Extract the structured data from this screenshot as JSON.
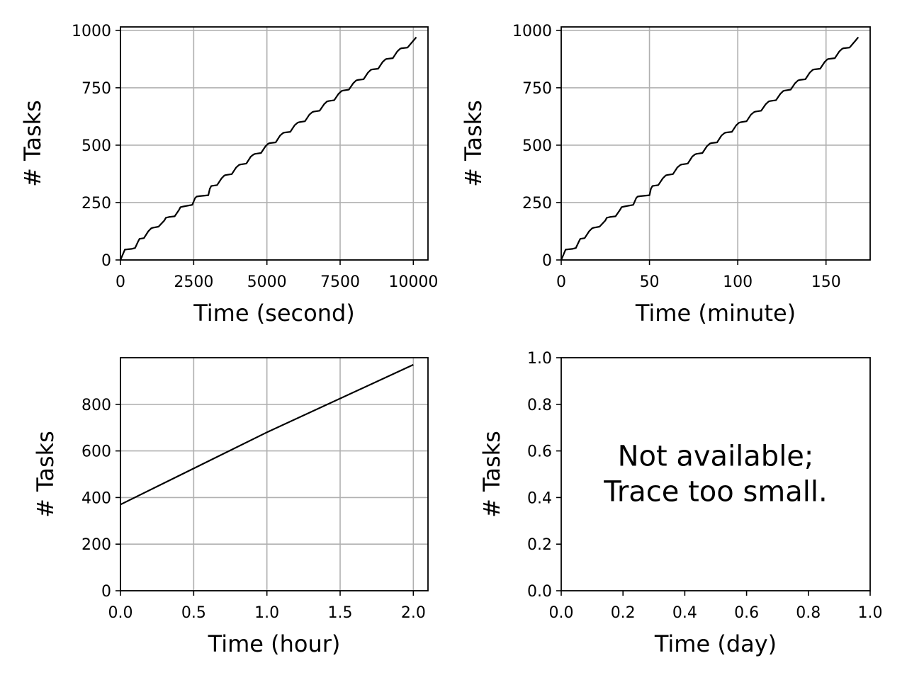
{
  "chart_data": [
    {
      "type": "line",
      "xlabel": "Time (second)",
      "ylabel": "# Tasks",
      "xlim": [
        0,
        10500
      ],
      "ylim": [
        0,
        1015
      ],
      "xticks": [
        0,
        2500,
        5000,
        7500,
        10000
      ],
      "xtick_labels": [
        "0",
        "2500",
        "5000",
        "7500",
        "10000"
      ],
      "yticks": [
        0,
        250,
        500,
        750,
        1000
      ],
      "ytick_labels": [
        "0",
        "250",
        "500",
        "750",
        "1000"
      ],
      "grid": true,
      "line_color": "#000000",
      "series": [
        {
          "x": [
            0,
            150,
            380,
            500,
            600,
            650,
            800,
            950,
            1050,
            1100,
            1300,
            1500,
            1550,
            1650,
            1850,
            2000,
            2050,
            2150,
            2450,
            2550,
            2600,
            2700,
            3000,
            3050,
            3100,
            3300,
            3450,
            3550,
            3600,
            3800,
            3950,
            4050,
            4100,
            4300,
            4450,
            4550,
            4600,
            4800,
            4950,
            5050,
            5100,
            5300,
            5450,
            5550,
            5600,
            5800,
            5950,
            6050,
            6100,
            6300,
            6450,
            6550,
            6600,
            6800,
            6950,
            7050,
            7100,
            7300,
            7450,
            7550,
            7600,
            7800,
            7950,
            8050,
            8100,
            8300,
            8450,
            8550,
            8600,
            8800,
            8950,
            9050,
            9100,
            9300,
            9450,
            9550,
            9600,
            9800,
            10000,
            10100
          ],
          "y": [
            0,
            45,
            48,
            52,
            80,
            92,
            95,
            125,
            138,
            140,
            145,
            172,
            184,
            187,
            190,
            218,
            230,
            233,
            240,
            270,
            276,
            278,
            282,
            310,
            322,
            326,
            355,
            368,
            370,
            374,
            403,
            414,
            416,
            420,
            450,
            460,
            462,
            466,
            495,
            507,
            509,
            512,
            542,
            553,
            555,
            558,
            587,
            598,
            600,
            604,
            633,
            644,
            646,
            650,
            678,
            690,
            692,
            696,
            724,
            736,
            738,
            742,
            770,
            782,
            784,
            787,
            816,
            828,
            830,
            833,
            862,
            874,
            876,
            879,
            908,
            920,
            922,
            925,
            955,
            970
          ]
        }
      ]
    },
    {
      "type": "line",
      "xlabel": "Time (minute)",
      "ylabel": "# Tasks",
      "xlim": [
        0,
        175
      ],
      "ylim": [
        0,
        1015
      ],
      "xticks": [
        0,
        50,
        100,
        150
      ],
      "xtick_labels": [
        "0",
        "50",
        "100",
        "150"
      ],
      "yticks": [
        0,
        250,
        500,
        750,
        1000
      ],
      "ytick_labels": [
        "0",
        "250",
        "500",
        "750",
        "1000"
      ],
      "grid": true,
      "line_color": "#000000",
      "series": [
        {
          "x": [
            0,
            2.5,
            6.3,
            8.3,
            10,
            10.8,
            13.3,
            15.8,
            17.5,
            18.3,
            21.7,
            25,
            25.8,
            27.5,
            30.8,
            33.3,
            34.2,
            35.8,
            40.8,
            42.5,
            43.3,
            45,
            50,
            50.8,
            51.7,
            55,
            57.5,
            59.2,
            60,
            63.3,
            65.8,
            67.5,
            68.3,
            71.7,
            74.2,
            75.8,
            76.7,
            80,
            82.5,
            84.2,
            85,
            88.3,
            90.8,
            92.5,
            93.3,
            96.7,
            99.2,
            100.8,
            101.7,
            105,
            107.5,
            109.2,
            110,
            113.3,
            115.8,
            117.5,
            118.3,
            121.7,
            124.2,
            125.8,
            126.7,
            130,
            132.5,
            134.2,
            135,
            138.3,
            140.8,
            142.5,
            143.3,
            146.7,
            149.2,
            150.8,
            151.7,
            155,
            157.5,
            159.2,
            160,
            163.3,
            166.7,
            168.3
          ],
          "y": [
            0,
            45,
            48,
            52,
            80,
            92,
            95,
            125,
            138,
            140,
            145,
            172,
            184,
            187,
            190,
            218,
            230,
            233,
            240,
            270,
            276,
            278,
            282,
            310,
            322,
            326,
            355,
            368,
            370,
            374,
            403,
            414,
            416,
            420,
            450,
            460,
            462,
            466,
            495,
            507,
            509,
            512,
            542,
            553,
            555,
            558,
            587,
            598,
            600,
            604,
            633,
            644,
            646,
            650,
            678,
            690,
            692,
            696,
            724,
            736,
            738,
            742,
            770,
            782,
            784,
            787,
            816,
            828,
            830,
            833,
            862,
            874,
            876,
            879,
            908,
            920,
            922,
            925,
            955,
            970
          ]
        }
      ]
    },
    {
      "type": "line",
      "xlabel": "Time (hour)",
      "ylabel": "# Tasks",
      "xlim": [
        0,
        2.1
      ],
      "ylim": [
        0,
        1000
      ],
      "xticks": [
        0,
        0.5,
        1,
        1.5,
        2
      ],
      "xtick_labels": [
        "0.0",
        "0.5",
        "1.0",
        "1.5",
        "2.0"
      ],
      "yticks": [
        0,
        200,
        400,
        600,
        800
      ],
      "ytick_labels": [
        "0",
        "200",
        "400",
        "600",
        "800"
      ],
      "grid": true,
      "line_color": "#000000",
      "series": [
        {
          "x": [
            0,
            1,
            2
          ],
          "y": [
            370,
            680,
            970
          ]
        }
      ]
    },
    {
      "type": "line",
      "xlabel": "Time (day)",
      "ylabel": "# Tasks",
      "xlim": [
        0,
        1
      ],
      "ylim": [
        0,
        1
      ],
      "xticks": [
        0,
        0.2,
        0.4,
        0.6,
        0.8,
        1
      ],
      "xtick_labels": [
        "0.0",
        "0.2",
        "0.4",
        "0.6",
        "0.8",
        "1.0"
      ],
      "yticks": [
        0,
        0.2,
        0.4,
        0.6,
        0.8,
        1
      ],
      "ytick_labels": [
        "0.0",
        "0.2",
        "0.4",
        "0.6",
        "0.8",
        "1.0"
      ],
      "grid": false,
      "line_color": "#000000",
      "note": [
        "Not available;",
        "Trace too small."
      ],
      "series": []
    }
  ],
  "colors": {
    "grid": "#b0b0b0",
    "axes": "#000000",
    "line": "#000000"
  }
}
